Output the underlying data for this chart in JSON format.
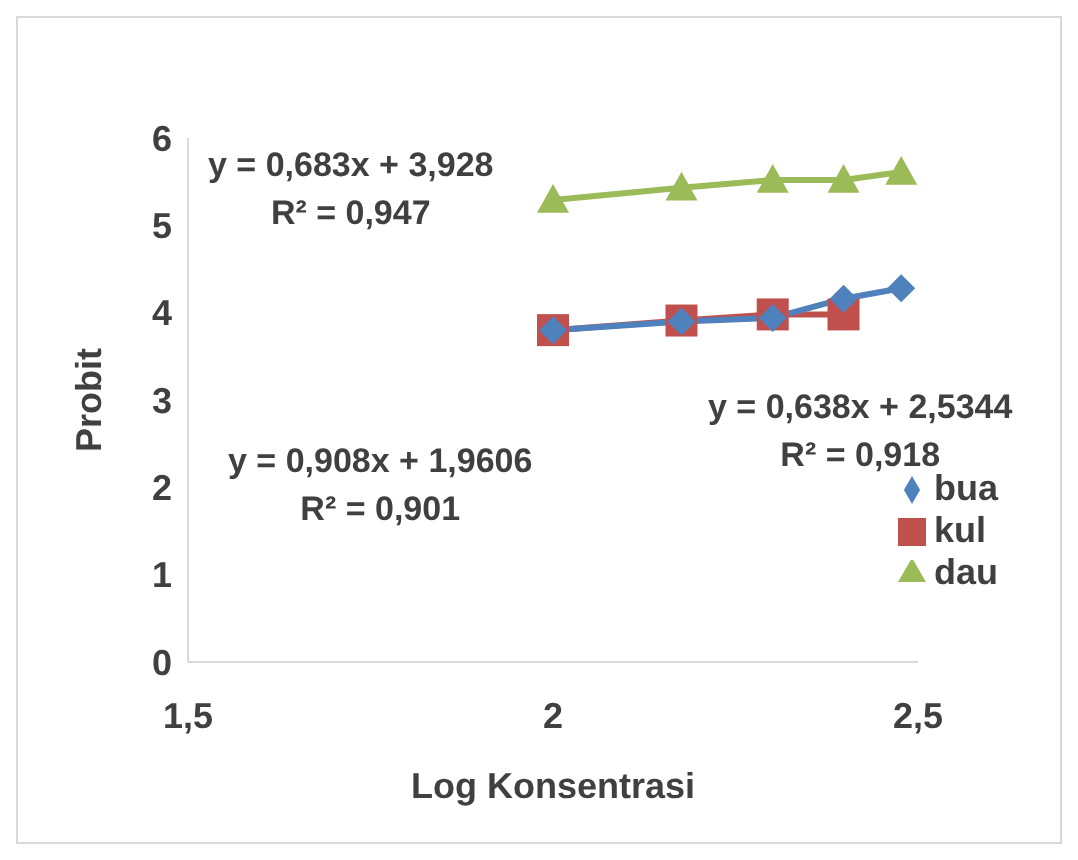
{
  "chart_data": {
    "type": "line",
    "xlabel": "Log Konsentrasi",
    "ylabel": "Probit",
    "xlim": [
      1.5,
      2.5
    ],
    "xticks": [
      {
        "value": 1.5,
        "label": "1,5"
      },
      {
        "value": 2,
        "label": "2"
      },
      {
        "value": 2.5,
        "label": "2,5"
      }
    ],
    "ylim": [
      0,
      6
    ],
    "yticks": [
      0,
      1,
      2,
      3,
      4,
      5,
      6
    ],
    "grid": false,
    "legend": "right",
    "series": [
      {
        "name": "bua",
        "color": "#4f81bd",
        "marker": "diamond",
        "x": [
          2,
          2.176,
          2.301,
          2.398,
          2.477
        ],
        "values": [
          3.8,
          3.9,
          3.94,
          4.16,
          4.28
        ]
      },
      {
        "name": "kul",
        "color": "#c0504d",
        "marker": "square",
        "x": [
          2,
          2.176,
          2.301,
          2.398
        ],
        "values": [
          3.8,
          3.91,
          3.98,
          3.98
        ]
      },
      {
        "name": "dau",
        "color": "#9bbb59",
        "marker": "triangle",
        "x": [
          2,
          2.176,
          2.301,
          2.398,
          2.477
        ],
        "values": [
          5.29,
          5.43,
          5.52,
          5.52,
          5.61
        ]
      }
    ],
    "annotations": [
      "y = 0,683x + 3,928\nR² = 0,947",
      "y = 0,638x + 2,5344\nR² = 0,918",
      "y = 0,908x + 1,9606\nR² = 0,901"
    ]
  }
}
